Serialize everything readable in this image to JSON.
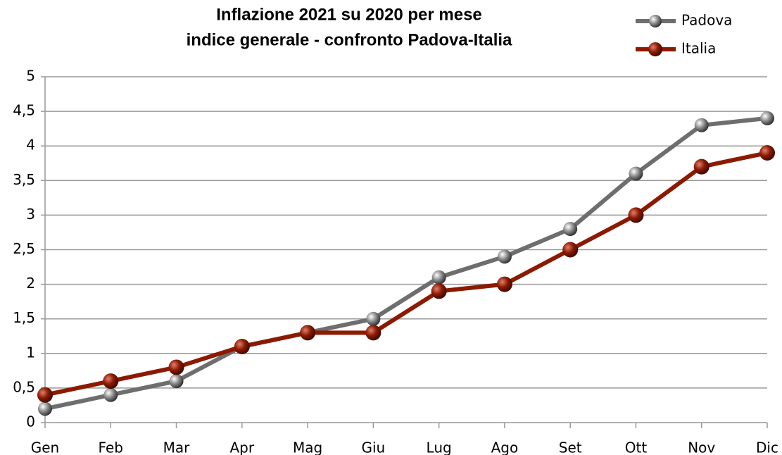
{
  "chart_data": {
    "type": "line",
    "title": "Inflazione 2021 su 2020 per mese",
    "subtitle": "indice generale - confronto Padova-Italia",
    "categories": [
      "Gen",
      "Feb",
      "Mar",
      "Apr",
      "Mag",
      "Giu",
      "Lug",
      "Ago",
      "Set",
      "Ott",
      "Nov",
      "Dic"
    ],
    "series": [
      {
        "name": "Padova",
        "color": "#6e6e6e",
        "values": [
          0.2,
          0.4,
          0.6,
          1.1,
          1.3,
          1.5,
          2.1,
          2.4,
          2.8,
          3.6,
          4.3,
          4.4
        ]
      },
      {
        "name": "Italia",
        "color": "#8b1a00",
        "values": [
          0.4,
          0.6,
          0.8,
          1.1,
          1.3,
          1.3,
          1.9,
          2.0,
          2.5,
          3.0,
          3.7,
          3.9
        ]
      }
    ],
    "ylim": [
      0,
      5
    ],
    "yticks": [
      0,
      {
        "value": 0.5,
        "label": "0,5"
      },
      1,
      {
        "value": 1.5,
        "label": "1,5"
      },
      2,
      {
        "value": 2.5,
        "label": "2,5"
      },
      3,
      {
        "value": 3.5,
        "label": "3,5"
      },
      4,
      {
        "value": 4.5,
        "label": "4,5"
      },
      5
    ],
    "grid": true,
    "legend": "top-right"
  }
}
